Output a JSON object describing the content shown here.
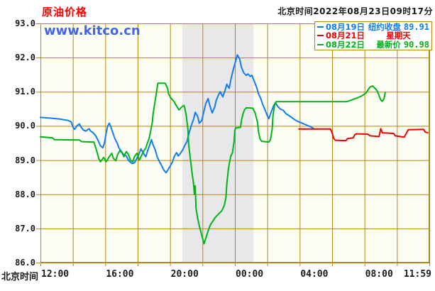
{
  "page": {
    "title": "原油价格",
    "timestamp": "北京时间2022年08月23日09时17分",
    "watermark": "www.kitco.cn",
    "x_axis_name": "北京时间"
  },
  "legend": {
    "items": [
      {
        "date": "08月19日",
        "desc": "纽约收盘",
        "value": "89.91",
        "color": "#0f7cf0"
      },
      {
        "date": "08月21日",
        "desc": "星期天",
        "value": "",
        "color": "#ee0000"
      },
      {
        "date": "08月22日",
        "desc": "最新价",
        "value": "90.98",
        "color": "#00b414"
      }
    ]
  },
  "colors": {
    "grid": "#b8860b",
    "plot_bg": "#fcfef6",
    "band": "#e8e8ea",
    "title": "#ff0000",
    "watermark": "#4565e8",
    "text": "#1a1a1a"
  },
  "chart_data": {
    "type": "line",
    "title": "原油价格 (Crude Oil Price, Kitco)",
    "x_axis": {
      "label": "北京时间",
      "unit": "hours since 12:00 Beijing time",
      "range": [
        0,
        24
      ],
      "gridline_every_hours": 2,
      "ticks": [
        {
          "h": 0,
          "label": "12:00"
        },
        {
          "h": 4,
          "label": "16:00"
        },
        {
          "h": 8,
          "label": "20:00"
        },
        {
          "h": 12,
          "label": "00:00"
        },
        {
          "h": 16,
          "label": "04:00"
        },
        {
          "h": 20,
          "label": "08:00"
        },
        {
          "h": 23.98,
          "label": "11:59"
        }
      ]
    },
    "y_axis": {
      "range": [
        86.0,
        93.0
      ],
      "tick_step": 1.0,
      "tick_labels": [
        "93.0",
        "92.0",
        "91.0",
        "90.0",
        "89.0",
        "88.0",
        "87.0",
        "86.0"
      ]
    },
    "shaded_band_hours": [
      8.75,
      13.17
    ],
    "legend_position": "top-right",
    "series": [
      {
        "id": "aug19",
        "name": "08月19日 纽约收盘",
        "color": "#0f7cf0",
        "close": 89.91,
        "points": [
          [
            0,
            90.25
          ],
          [
            0.6,
            90.23
          ],
          [
            1.2,
            90.2
          ],
          [
            1.7,
            90.16
          ],
          [
            1.9,
            90.12
          ],
          [
            2.0,
            89.97
          ],
          [
            2.1,
            89.9
          ],
          [
            2.25,
            90.0
          ],
          [
            2.4,
            90.06
          ],
          [
            2.5,
            89.97
          ],
          [
            2.65,
            89.88
          ],
          [
            2.8,
            89.85
          ],
          [
            3.0,
            89.92
          ],
          [
            3.1,
            89.85
          ],
          [
            3.25,
            89.8
          ],
          [
            3.4,
            89.72
          ],
          [
            3.55,
            89.58
          ],
          [
            3.7,
            89.42
          ],
          [
            3.85,
            89.36
          ],
          [
            3.95,
            89.5
          ],
          [
            4.05,
            89.78
          ],
          [
            4.15,
            90.0
          ],
          [
            4.25,
            90.08
          ],
          [
            4.35,
            89.97
          ],
          [
            4.45,
            89.82
          ],
          [
            4.6,
            89.62
          ],
          [
            4.75,
            89.48
          ],
          [
            4.85,
            89.35
          ],
          [
            5.0,
            89.25
          ],
          [
            5.1,
            89.18
          ],
          [
            5.3,
            89.12
          ],
          [
            5.45,
            88.98
          ],
          [
            5.65,
            88.9
          ],
          [
            5.8,
            88.92
          ],
          [
            5.95,
            89.05
          ],
          [
            6.1,
            89.2
          ],
          [
            6.2,
            89.33
          ],
          [
            6.35,
            89.2
          ],
          [
            6.5,
            89.1
          ],
          [
            6.6,
            89.25
          ],
          [
            6.75,
            89.45
          ],
          [
            6.85,
            89.6
          ],
          [
            6.95,
            89.45
          ],
          [
            7.1,
            89.28
          ],
          [
            7.2,
            89.1
          ],
          [
            7.35,
            88.95
          ],
          [
            7.5,
            88.82
          ],
          [
            7.6,
            88.72
          ],
          [
            7.75,
            88.63
          ],
          [
            7.85,
            88.7
          ],
          [
            8.0,
            88.82
          ],
          [
            8.15,
            88.95
          ],
          [
            8.25,
            89.1
          ],
          [
            8.4,
            89.22
          ],
          [
            8.5,
            89.12
          ],
          [
            8.65,
            89.2
          ],
          [
            8.8,
            89.32
          ],
          [
            8.9,
            89.42
          ],
          [
            9.05,
            89.55
          ],
          [
            9.15,
            89.75
          ],
          [
            9.3,
            90.0
          ],
          [
            9.45,
            90.2
          ],
          [
            9.55,
            90.4
          ],
          [
            9.7,
            90.28
          ],
          [
            9.8,
            90.08
          ],
          [
            9.95,
            90.15
          ],
          [
            10.1,
            90.45
          ],
          [
            10.2,
            90.65
          ],
          [
            10.35,
            90.8
          ],
          [
            10.45,
            90.6
          ],
          [
            10.6,
            90.38
          ],
          [
            10.75,
            90.55
          ],
          [
            10.85,
            90.75
          ],
          [
            11.0,
            90.92
          ],
          [
            11.1,
            91.0
          ],
          [
            11.25,
            90.85
          ],
          [
            11.4,
            91.05
          ],
          [
            11.5,
            91.22
          ],
          [
            11.65,
            91.1
          ],
          [
            11.75,
            91.35
          ],
          [
            11.9,
            91.65
          ],
          [
            12.05,
            91.9
          ],
          [
            12.15,
            92.08
          ],
          [
            12.3,
            91.95
          ],
          [
            12.4,
            91.72
          ],
          [
            12.55,
            91.55
          ],
          [
            12.7,
            91.48
          ],
          [
            12.8,
            91.52
          ],
          [
            12.95,
            91.45
          ],
          [
            13.05,
            91.48
          ],
          [
            13.2,
            91.3
          ],
          [
            13.35,
            91.12
          ],
          [
            13.45,
            90.95
          ],
          [
            13.6,
            90.8
          ],
          [
            13.7,
            90.65
          ],
          [
            13.85,
            90.48
          ],
          [
            14.0,
            90.3
          ],
          [
            14.1,
            90.21
          ],
          [
            14.25,
            90.42
          ],
          [
            14.4,
            90.6
          ],
          [
            14.5,
            90.68
          ],
          [
            14.65,
            90.57
          ],
          [
            14.8,
            90.5
          ],
          [
            15.0,
            90.45
          ],
          [
            15.15,
            90.36
          ],
          [
            15.35,
            90.3
          ],
          [
            15.5,
            90.25
          ],
          [
            15.7,
            90.18
          ],
          [
            15.85,
            90.14
          ],
          [
            16.05,
            90.1
          ],
          [
            16.2,
            90.07
          ],
          [
            16.4,
            90.03
          ],
          [
            16.55,
            90.0
          ],
          [
            16.75,
            89.96
          ],
          [
            16.9,
            89.91
          ]
        ]
      },
      {
        "id": "aug21",
        "name": "08月21日 星期天",
        "color": "#ee0000",
        "points": [
          [
            15.95,
            89.91
          ],
          [
            17.9,
            89.91
          ],
          [
            18.0,
            89.8
          ],
          [
            18.1,
            89.63
          ],
          [
            18.2,
            89.58
          ],
          [
            18.85,
            89.57
          ],
          [
            18.95,
            89.63
          ],
          [
            19.3,
            89.65
          ],
          [
            19.4,
            89.74
          ],
          [
            19.5,
            89.77
          ],
          [
            20.2,
            89.76
          ],
          [
            20.35,
            89.71
          ],
          [
            20.9,
            89.69
          ],
          [
            20.97,
            89.85
          ],
          [
            21.0,
            89.92
          ],
          [
            21.1,
            89.8
          ],
          [
            21.8,
            89.78
          ],
          [
            21.9,
            89.71
          ],
          [
            22.45,
            89.67
          ],
          [
            22.6,
            89.8
          ],
          [
            22.7,
            89.89
          ],
          [
            23.65,
            89.9
          ],
          [
            23.75,
            89.82
          ],
          [
            23.9,
            89.8
          ]
        ]
      },
      {
        "id": "aug22",
        "name": "08月22日 最新价",
        "color": "#00b414",
        "last": 90.98,
        "points": [
          [
            0,
            89.68
          ],
          [
            0.75,
            89.65
          ],
          [
            0.85,
            89.6
          ],
          [
            2.4,
            89.59
          ],
          [
            2.55,
            89.54
          ],
          [
            3.3,
            89.53
          ],
          [
            3.45,
            89.3
          ],
          [
            3.6,
            89.05
          ],
          [
            3.7,
            88.95
          ],
          [
            3.9,
            89.08
          ],
          [
            4.05,
            88.95
          ],
          [
            4.25,
            89.1
          ],
          [
            4.4,
            89.2
          ],
          [
            4.5,
            89.05
          ],
          [
            4.65,
            88.98
          ],
          [
            4.75,
            89.15
          ],
          [
            4.9,
            89.28
          ],
          [
            5.05,
            89.2
          ],
          [
            5.15,
            89.1
          ],
          [
            5.3,
            89.25
          ],
          [
            5.45,
            89.15
          ],
          [
            5.55,
            89.0
          ],
          [
            5.7,
            88.95
          ],
          [
            5.8,
            89.1
          ],
          [
            5.95,
            89.2
          ],
          [
            6.1,
            89.0
          ],
          [
            6.2,
            89.1
          ],
          [
            6.35,
            89.25
          ],
          [
            6.5,
            89.35
          ],
          [
            6.6,
            89.5
          ],
          [
            6.7,
            89.62
          ],
          [
            6.8,
            89.85
          ],
          [
            6.9,
            90.1
          ],
          [
            6.95,
            90.35
          ],
          [
            7.05,
            90.65
          ],
          [
            7.15,
            90.95
          ],
          [
            7.2,
            91.12
          ],
          [
            7.25,
            91.25
          ],
          [
            7.7,
            91.25
          ],
          [
            7.85,
            91.1
          ],
          [
            7.9,
            90.95
          ],
          [
            8.0,
            90.85
          ],
          [
            8.15,
            90.76
          ],
          [
            8.25,
            90.71
          ],
          [
            8.35,
            90.62
          ],
          [
            8.45,
            90.55
          ],
          [
            8.55,
            90.47
          ],
          [
            8.7,
            90.55
          ],
          [
            8.85,
            90.6
          ],
          [
            8.9,
            90.55
          ],
          [
            9.0,
            90.3
          ],
          [
            9.1,
            89.9
          ],
          [
            9.15,
            89.45
          ],
          [
            9.25,
            89.05
          ],
          [
            9.35,
            88.65
          ],
          [
            9.45,
            88.3
          ],
          [
            9.5,
            88.0
          ],
          [
            9.55,
            88.25
          ],
          [
            9.6,
            87.6
          ],
          [
            9.7,
            87.3
          ],
          [
            9.8,
            87.08
          ],
          [
            9.9,
            86.9
          ],
          [
            10.0,
            86.72
          ],
          [
            10.1,
            86.55
          ],
          [
            10.25,
            86.78
          ],
          [
            10.4,
            87.0
          ],
          [
            10.5,
            87.12
          ],
          [
            10.65,
            87.22
          ],
          [
            10.75,
            87.3
          ],
          [
            10.9,
            87.38
          ],
          [
            11.05,
            87.45
          ],
          [
            11.2,
            87.52
          ],
          [
            11.35,
            87.68
          ],
          [
            11.45,
            87.9
          ],
          [
            11.5,
            88.3
          ],
          [
            11.6,
            88.75
          ],
          [
            11.7,
            89.0
          ],
          [
            11.75,
            89.12
          ],
          [
            11.85,
            89.22
          ],
          [
            11.95,
            89.55
          ],
          [
            12.0,
            89.88
          ],
          [
            12.05,
            89.94
          ],
          [
            12.35,
            89.96
          ],
          [
            12.4,
            90.15
          ],
          [
            12.5,
            90.35
          ],
          [
            12.6,
            90.48
          ],
          [
            12.7,
            90.53
          ],
          [
            13.1,
            90.52
          ],
          [
            13.25,
            90.38
          ],
          [
            13.4,
            90.1
          ],
          [
            13.45,
            89.85
          ],
          [
            13.55,
            89.62
          ],
          [
            13.65,
            89.55
          ],
          [
            14.1,
            89.53
          ],
          [
            14.2,
            89.6
          ],
          [
            14.3,
            89.9
          ],
          [
            14.35,
            90.3
          ],
          [
            14.45,
            90.6
          ],
          [
            14.55,
            90.71
          ],
          [
            18.9,
            90.71
          ],
          [
            19.1,
            90.74
          ],
          [
            19.3,
            90.78
          ],
          [
            19.55,
            90.82
          ],
          [
            19.75,
            90.86
          ],
          [
            19.9,
            90.9
          ],
          [
            20.1,
            90.97
          ],
          [
            20.25,
            91.08
          ],
          [
            20.35,
            91.14
          ],
          [
            20.5,
            91.17
          ],
          [
            20.6,
            91.12
          ],
          [
            20.75,
            91.05
          ],
          [
            20.85,
            90.95
          ],
          [
            20.95,
            90.82
          ],
          [
            21.0,
            90.76
          ],
          [
            21.1,
            90.72
          ],
          [
            21.2,
            90.8
          ],
          [
            21.28,
            90.98
          ]
        ]
      }
    ]
  }
}
